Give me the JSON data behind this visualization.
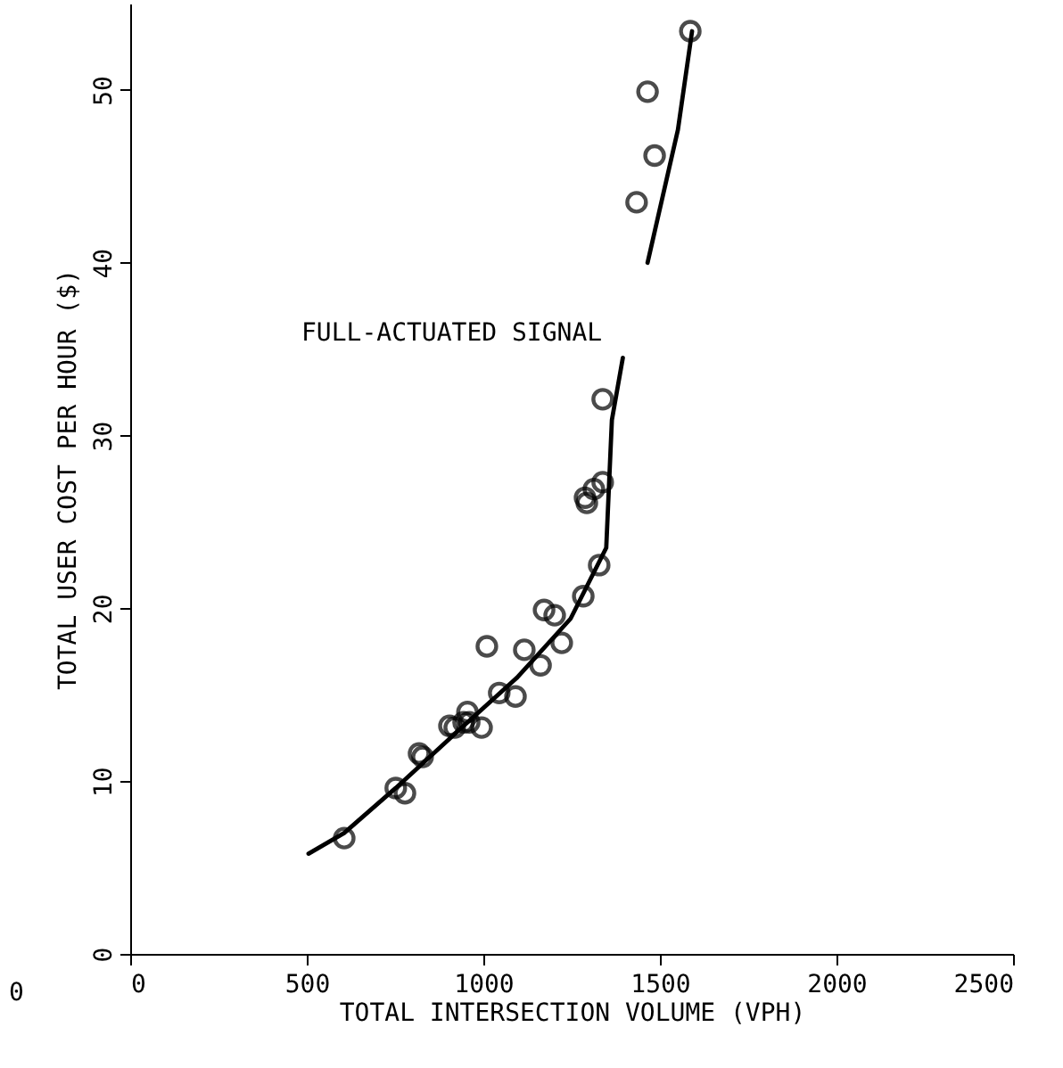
{
  "chart_data": {
    "type": "scatter",
    "xlabel": "TOTAL INTERSECTION VOLUME (VPH)",
    "ylabel": "TOTAL USER COST PER HOUR ($)",
    "xlim": [
      0,
      2500
    ],
    "xticks": [
      0,
      500,
      1000,
      1500,
      2000,
      2500
    ],
    "ylim": [
      0,
      55
    ],
    "yticks": [
      0,
      10,
      20,
      30,
      40,
      50
    ],
    "grid": false,
    "marker": "circle",
    "annotations": [
      "FULL-ACTUATED SIGNAL",
      "0"
    ],
    "series": [
      {
        "color": "#000000",
        "x": [
          606,
          752,
          778,
          818,
          828,
          904,
          919,
          944,
          955,
          960,
          995,
          1010,
          1045,
          1091,
          1116,
          1162,
          1172,
          1202,
          1222,
          1283,
          1288,
          1293,
          1313,
          1328,
          1338,
          1338,
          1434,
          1465,
          1485,
          1586
        ],
        "values": [
          6.7,
          9.6,
          9.3,
          11.6,
          11.4,
          13.2,
          13.1,
          13.4,
          14.0,
          13.4,
          13.1,
          17.8,
          15.1,
          14.9,
          17.6,
          16.7,
          19.9,
          19.6,
          18.0,
          20.7,
          26.4,
          26.1,
          26.9,
          22.5,
          27.3,
          32.1,
          43.5,
          49.9,
          46.2,
          53.4
        ]
      },
      {
        "type": "line",
        "color": "#000000",
        "marker": "none",
        "line_style": "solid",
        "x": [
          505,
          606,
          752,
          944,
          1096,
          1247,
          1348,
          1364,
          1395,
          1430,
          1465,
          1551,
          1591
        ],
        "values": [
          5.8,
          7.0,
          9.6,
          13.2,
          16.0,
          19.4,
          23.5,
          30.9,
          34.5,
          null,
          40.0,
          47.7,
          53.4
        ]
      }
    ]
  }
}
